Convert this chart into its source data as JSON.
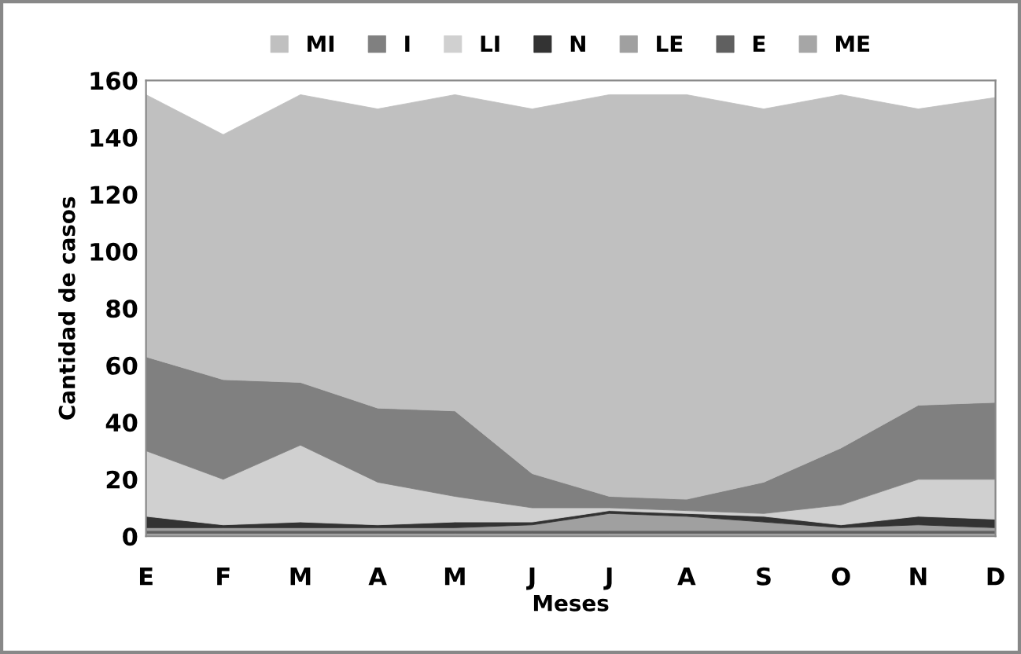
{
  "chart_data": {
    "type": "area",
    "stacked": true,
    "xlabel": "Meses",
    "ylabel": "Cantidad de casos",
    "categories": [
      "E",
      "F",
      "M",
      "A",
      "M",
      "J",
      "J",
      "A",
      "S",
      "O",
      "N",
      "D"
    ],
    "ylim": [
      0,
      160
    ],
    "yticks": [
      0,
      20,
      40,
      60,
      80,
      100,
      120,
      140,
      160
    ],
    "grid": false,
    "legend": "top",
    "series": [
      {
        "name": "ME",
        "color": "#a6a6a6",
        "values": [
          1,
          1,
          1,
          1,
          1,
          1,
          1,
          1,
          1,
          1,
          1,
          1
        ]
      },
      {
        "name": "E",
        "color": "#606060",
        "values": [
          1,
          1,
          1,
          1,
          1,
          1,
          1,
          1,
          1,
          1,
          1,
          1
        ]
      },
      {
        "name": "LE",
        "color": "#a0a0a0",
        "values": [
          1,
          1,
          1,
          1,
          1,
          2,
          6,
          5,
          3,
          1,
          2,
          1
        ]
      },
      {
        "name": "N",
        "color": "#333333",
        "values": [
          4,
          1,
          2,
          1,
          2,
          1,
          1,
          1,
          2,
          1,
          3,
          3
        ]
      },
      {
        "name": "LI",
        "color": "#d0d0d0",
        "values": [
          23,
          16,
          27,
          15,
          9,
          5,
          1,
          1,
          1,
          7,
          13,
          14
        ]
      },
      {
        "name": "I",
        "color": "#808080",
        "values": [
          33,
          35,
          22,
          26,
          30,
          12,
          4,
          4,
          11,
          20,
          26,
          27
        ]
      },
      {
        "name": "MI",
        "color": "#c0c0c0",
        "values": [
          92,
          86,
          101,
          105,
          111,
          128,
          141,
          142,
          131,
          124,
          104,
          107
        ]
      }
    ]
  }
}
